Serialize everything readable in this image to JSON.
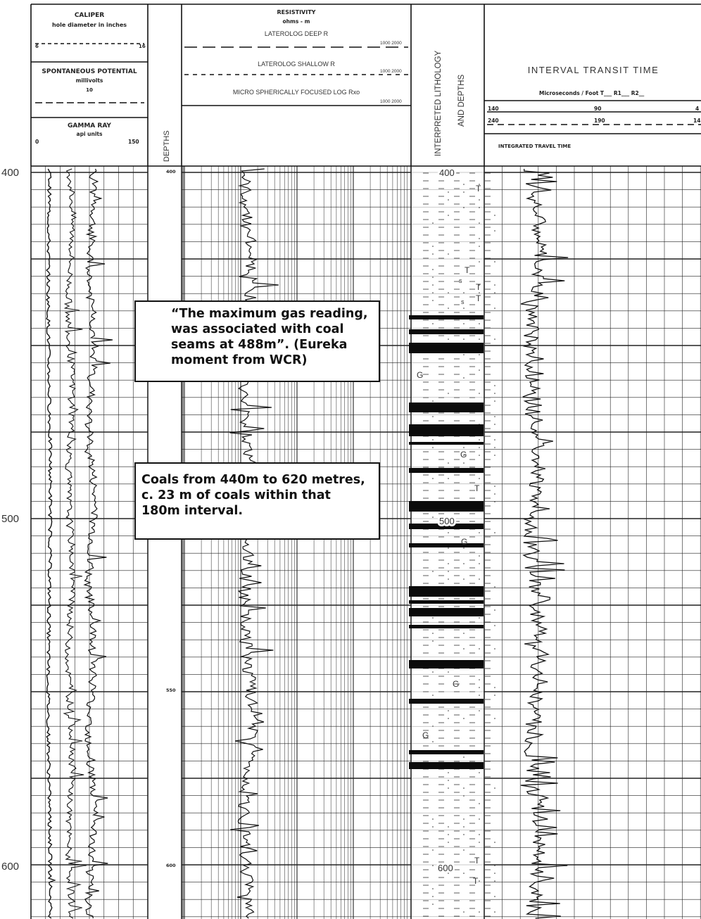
{
  "header": {
    "caliper_title": "CALIPER",
    "caliper_sub": "hole diameter in inches",
    "caliper_scale": [
      "6",
      "16"
    ],
    "sp_title": "SPONTANEOUS POTENTIAL",
    "sp_unit": "millivolts",
    "sp_scale": "10",
    "gr_title": "GAMMA RAY",
    "gr_unit": "api units",
    "gr_scale": [
      "0",
      "150"
    ],
    "depths_label": "DEPTHS",
    "res_title": "RESISTIVITY",
    "res_unit": "ohms - m",
    "lld_label": "LATEROLOG DEEP R",
    "lls_label": "LATEROLOG SHALLOW R",
    "msfl_label": "MICRO SPHERICALLY FOCUSED LOG Rxo",
    "res_scale": "1000 2000",
    "lith_label_1": "INTERPRETED LITHOLOGY",
    "lith_label_2": "AND DEPTHS",
    "itt_title": "INTERVAL TRANSIT TIME",
    "itt_sub": "Microseconds / Foot  T___  R1___  R2__",
    "itt_scale_1": [
      "140",
      "90",
      "4"
    ],
    "itt_scale_2": [
      "240",
      "190",
      "14"
    ],
    "itt_integrated": "INTEGRATED  TRAVEL  TIME"
  },
  "depth_axis": {
    "ticks": [
      "400",
      "500",
      "600"
    ],
    "track_labels": [
      "400",
      "550",
      "600"
    ]
  },
  "lithology": {
    "depth_labels": [
      "400",
      "500",
      "600"
    ],
    "symbols": [
      "T",
      "T",
      "s",
      "T",
      "s",
      "T",
      "G",
      "G",
      "T",
      "G",
      "G",
      "G",
      "T",
      "T"
    ]
  },
  "callouts": {
    "gas": "“The maximum gas reading, was associated with coal seams at 488m”. (Eureka moment from WCR)",
    "coal": "Coals from 440m to 620 metres, c. 23 m of coals within that 180m interval."
  }
}
